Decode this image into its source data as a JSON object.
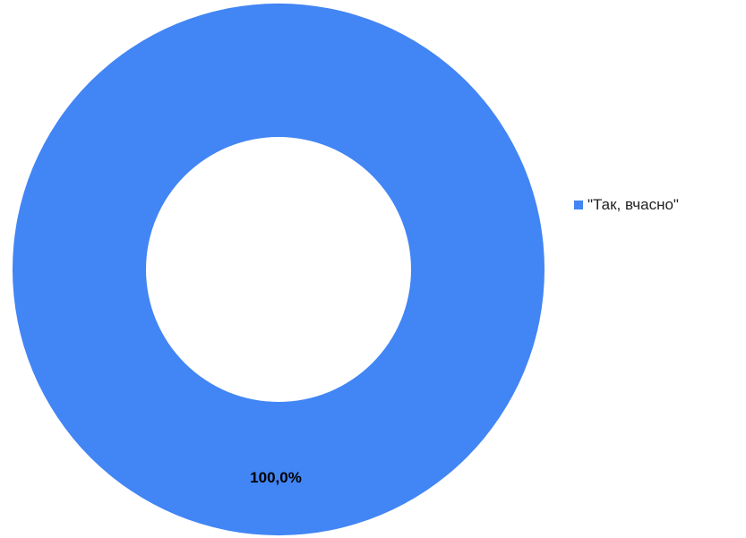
{
  "chart_data": {
    "type": "pie",
    "donut": true,
    "categories": [
      "\"Так, вчасно\""
    ],
    "values": [
      100.0
    ],
    "data_labels": [
      "100,0%"
    ],
    "colors": [
      "#4285f4"
    ],
    "legend_position": "right"
  }
}
